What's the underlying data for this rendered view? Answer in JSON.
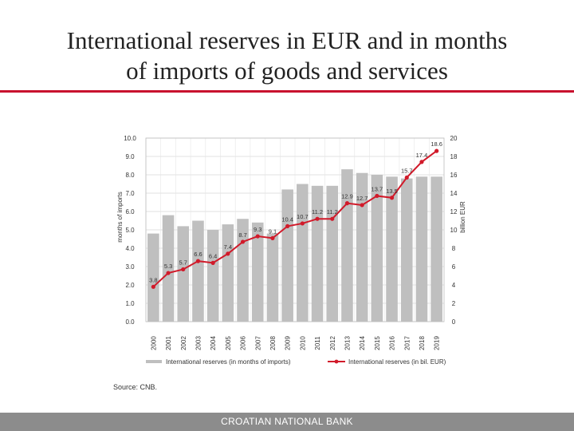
{
  "slide": {
    "title_line1": "International reserves in EUR and in months",
    "title_line2": "of imports of goods and services",
    "source": "Source: CNB.",
    "footer": "CROATIAN NATIONAL BANK"
  },
  "colors": {
    "bars": "#bfbfbf",
    "line": "#d11a2a",
    "accent": "#c8102e",
    "footer": "#8c8c8c"
  },
  "chart_data": {
    "type": "bar+line",
    "categories": [
      "2000",
      "2001",
      "2002",
      "2003",
      "2004",
      "2005",
      "2006",
      "2007",
      "2008",
      "2009",
      "2010",
      "2011",
      "2012",
      "2013",
      "2014",
      "2015",
      "2016",
      "2017",
      "2018",
      "2019"
    ],
    "series": [
      {
        "name": "International reserves (in months of imports)",
        "type": "bar",
        "axis": "left",
        "values": [
          4.8,
          5.8,
          5.2,
          5.5,
          5.0,
          5.3,
          5.6,
          5.4,
          4.8,
          7.2,
          7.5,
          7.4,
          7.4,
          8.3,
          8.1,
          8.0,
          7.9,
          7.8,
          7.9,
          7.9
        ]
      },
      {
        "name": "International reserves (in bil. EUR)",
        "type": "line",
        "axis": "right",
        "values": [
          3.8,
          5.3,
          5.7,
          6.6,
          6.4,
          7.4,
          8.7,
          9.3,
          9.1,
          10.4,
          10.7,
          11.2,
          11.2,
          12.9,
          12.7,
          13.7,
          13.5,
          15.7,
          17.4,
          18.6
        ],
        "labels": [
          "3.8",
          "5.3",
          "5.7",
          "6.6",
          "6.4",
          "7.4",
          "8.7",
          "9.3",
          "9.1",
          "10.4",
          "10.7",
          "11.2",
          "11.2",
          "12.9",
          "12.7",
          "13.7",
          "13.5",
          "15.7",
          "17.4",
          "18.6"
        ]
      }
    ],
    "left_axis": {
      "label": "months of imports",
      "min": 0,
      "max": 10,
      "ticks": [
        "0.0",
        "1.0",
        "2.0",
        "3.0",
        "4.0",
        "5.0",
        "6.0",
        "7.0",
        "8.0",
        "9.0",
        "10.0"
      ]
    },
    "right_axis": {
      "label": "billion EUR",
      "min": 0,
      "max": 20,
      "ticks": [
        "0",
        "2",
        "4",
        "6",
        "8",
        "10",
        "12",
        "14",
        "16",
        "18",
        "20"
      ]
    },
    "grid": true,
    "legend_position": "bottom"
  }
}
